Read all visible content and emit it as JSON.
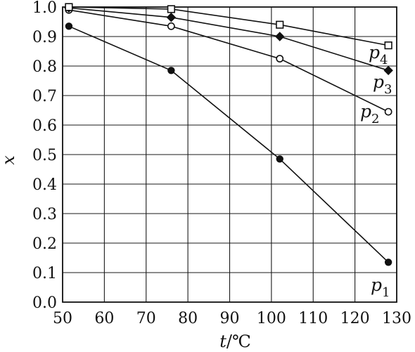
{
  "chart_data": {
    "type": "line",
    "xlabel": {
      "var": "t",
      "unit": "/℃"
    },
    "ylabel": "x",
    "xlim": [
      50,
      130
    ],
    "ylim": [
      0.0,
      1.0
    ],
    "x_ticks": [
      50,
      60,
      70,
      80,
      90,
      100,
      110,
      120,
      130
    ],
    "y_ticks": [
      "0.0",
      "0.1",
      "0.2",
      "0.3",
      "0.4",
      "0.5",
      "0.6",
      "0.7",
      "0.8",
      "0.9",
      "1.0"
    ],
    "grid": true,
    "series": [
      {
        "name": "p",
        "sub": "1",
        "marker": "filled-circle",
        "x": [
          51.5,
          76,
          102,
          128
        ],
        "y": [
          0.935,
          0.785,
          0.485,
          0.135
        ]
      },
      {
        "name": "p",
        "sub": "2",
        "marker": "open-circle",
        "x": [
          51.5,
          76,
          102,
          128
        ],
        "y": [
          0.99,
          0.935,
          0.825,
          0.645
        ]
      },
      {
        "name": "p",
        "sub": "3",
        "marker": "filled-diamond",
        "x": [
          51.5,
          76,
          102,
          128
        ],
        "y": [
          0.997,
          0.965,
          0.9,
          0.785
        ]
      },
      {
        "name": "p",
        "sub": "4",
        "marker": "open-square",
        "x": [
          51.5,
          76,
          102,
          128
        ],
        "y": [
          1.0,
          0.993,
          0.94,
          0.87
        ]
      }
    ],
    "colors": {
      "ink": "#111111",
      "background": "#ffffff"
    }
  }
}
